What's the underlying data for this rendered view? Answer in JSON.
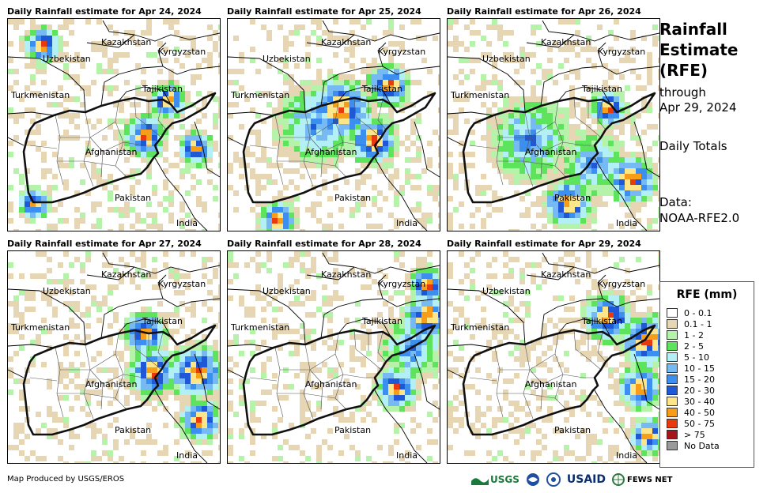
{
  "panels": [
    {
      "title": "Daily Rainfall estimate for Apr 24, 2024",
      "day": 0
    },
    {
      "title": "Daily Rainfall estimate for Apr 25, 2024",
      "day": 1
    },
    {
      "title": "Daily Rainfall estimate for Apr 26, 2024",
      "day": 2
    },
    {
      "title": "Daily Rainfall estimate for Apr 27, 2024",
      "day": 3
    },
    {
      "title": "Daily Rainfall estimate for Apr 28, 2024",
      "day": 4
    },
    {
      "title": "Daily Rainfall estimate for Apr 29, 2024",
      "day": 5
    }
  ],
  "map_labels": {
    "kazakhstan": "Kazakhstan",
    "kyrgyzstan": "Kyrgyzstan",
    "uzbekistan": "Uzbekistan",
    "tajikistan": "Tajikistan",
    "turkmenistan": "Turkmenistan",
    "afghanistan": "Afghanistan",
    "pakistan": "Pakistan",
    "india": "India"
  },
  "side": {
    "title_line1": "Rainfall",
    "title_line2": "Estimate",
    "title_line3": "(RFE)",
    "through": "through",
    "end_date": "Apr 29, 2024",
    "totals": "Daily Totals",
    "data_label": "Data:",
    "data_source": "NOAA-RFE2.0"
  },
  "legend": {
    "title": "RFE (mm)",
    "items": [
      {
        "label": "0 - 0.1",
        "color": "#ffffff"
      },
      {
        "label": "0.1 - 1",
        "color": "#e6d6b4"
      },
      {
        "label": "1 - 2",
        "color": "#b5f2aa"
      },
      {
        "label": "2 - 5",
        "color": "#5ee45c"
      },
      {
        "label": "5 - 10",
        "color": "#b3f0f5"
      },
      {
        "label": "10 - 15",
        "color": "#77b9f2"
      },
      {
        "label": "15 - 20",
        "color": "#3c8fef"
      },
      {
        "label": "20 - 30",
        "color": "#1f58d7"
      },
      {
        "label": "30 - 40",
        "color": "#fde68a"
      },
      {
        "label": "40 - 50",
        "color": "#f89d18"
      },
      {
        "label": "50 - 75",
        "color": "#e83a0c"
      },
      {
        "label": "> 75",
        "color": "#a4161a"
      },
      {
        "label": "No Data",
        "color": "#9a9a9a"
      }
    ]
  },
  "footer": {
    "credit": "Map Produced by USGS/EROS",
    "logos": [
      "USGS",
      "NOAA",
      "USAID",
      "FEWS NET"
    ]
  }
}
